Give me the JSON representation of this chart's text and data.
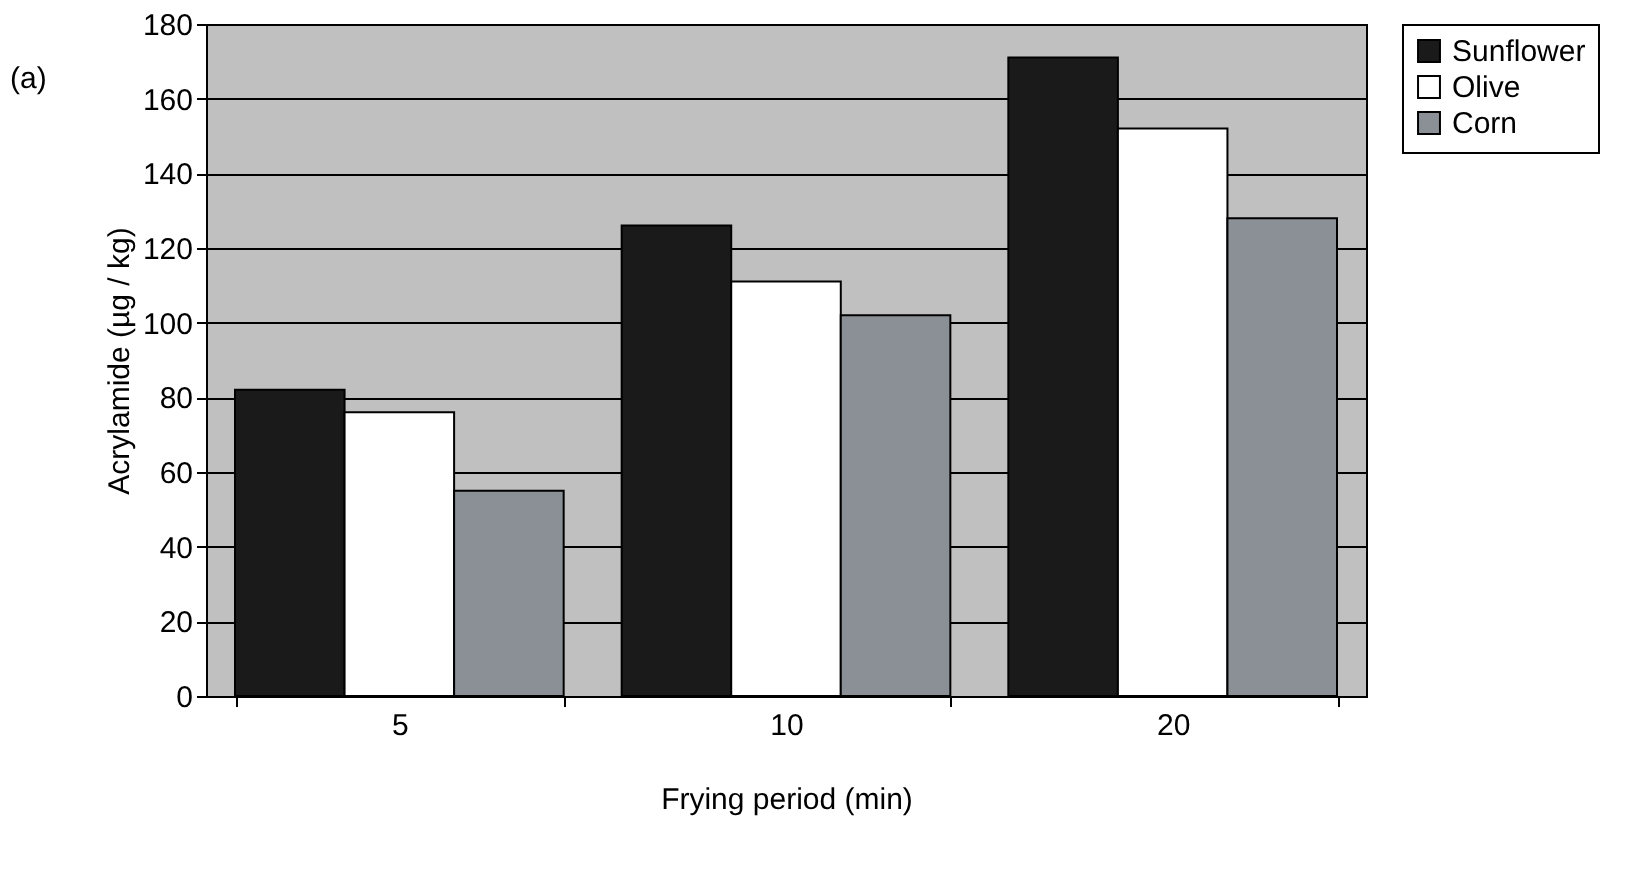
{
  "chart_data": {
    "type": "bar",
    "xlabel": "Frying period (min)",
    "ylabel": "Acrylamide (µg / kg)",
    "annotations": [
      "(a)"
    ],
    "categories": [
      "5",
      "10",
      "20"
    ],
    "series": [
      {
        "name": "Sunflower",
        "color": "#1a1a1a",
        "values": [
          82,
          126,
          171
        ]
      },
      {
        "name": "Olive",
        "color": "#ffffff",
        "values": [
          76,
          111,
          152
        ]
      },
      {
        "name": "Corn",
        "color": "#8a9096",
        "values": [
          55,
          102,
          128
        ]
      }
    ],
    "ylim": [
      0,
      180
    ],
    "yticks": [
      0,
      20,
      40,
      60,
      80,
      100,
      120,
      140,
      160,
      180
    ],
    "grid": "y",
    "legend": "right"
  }
}
